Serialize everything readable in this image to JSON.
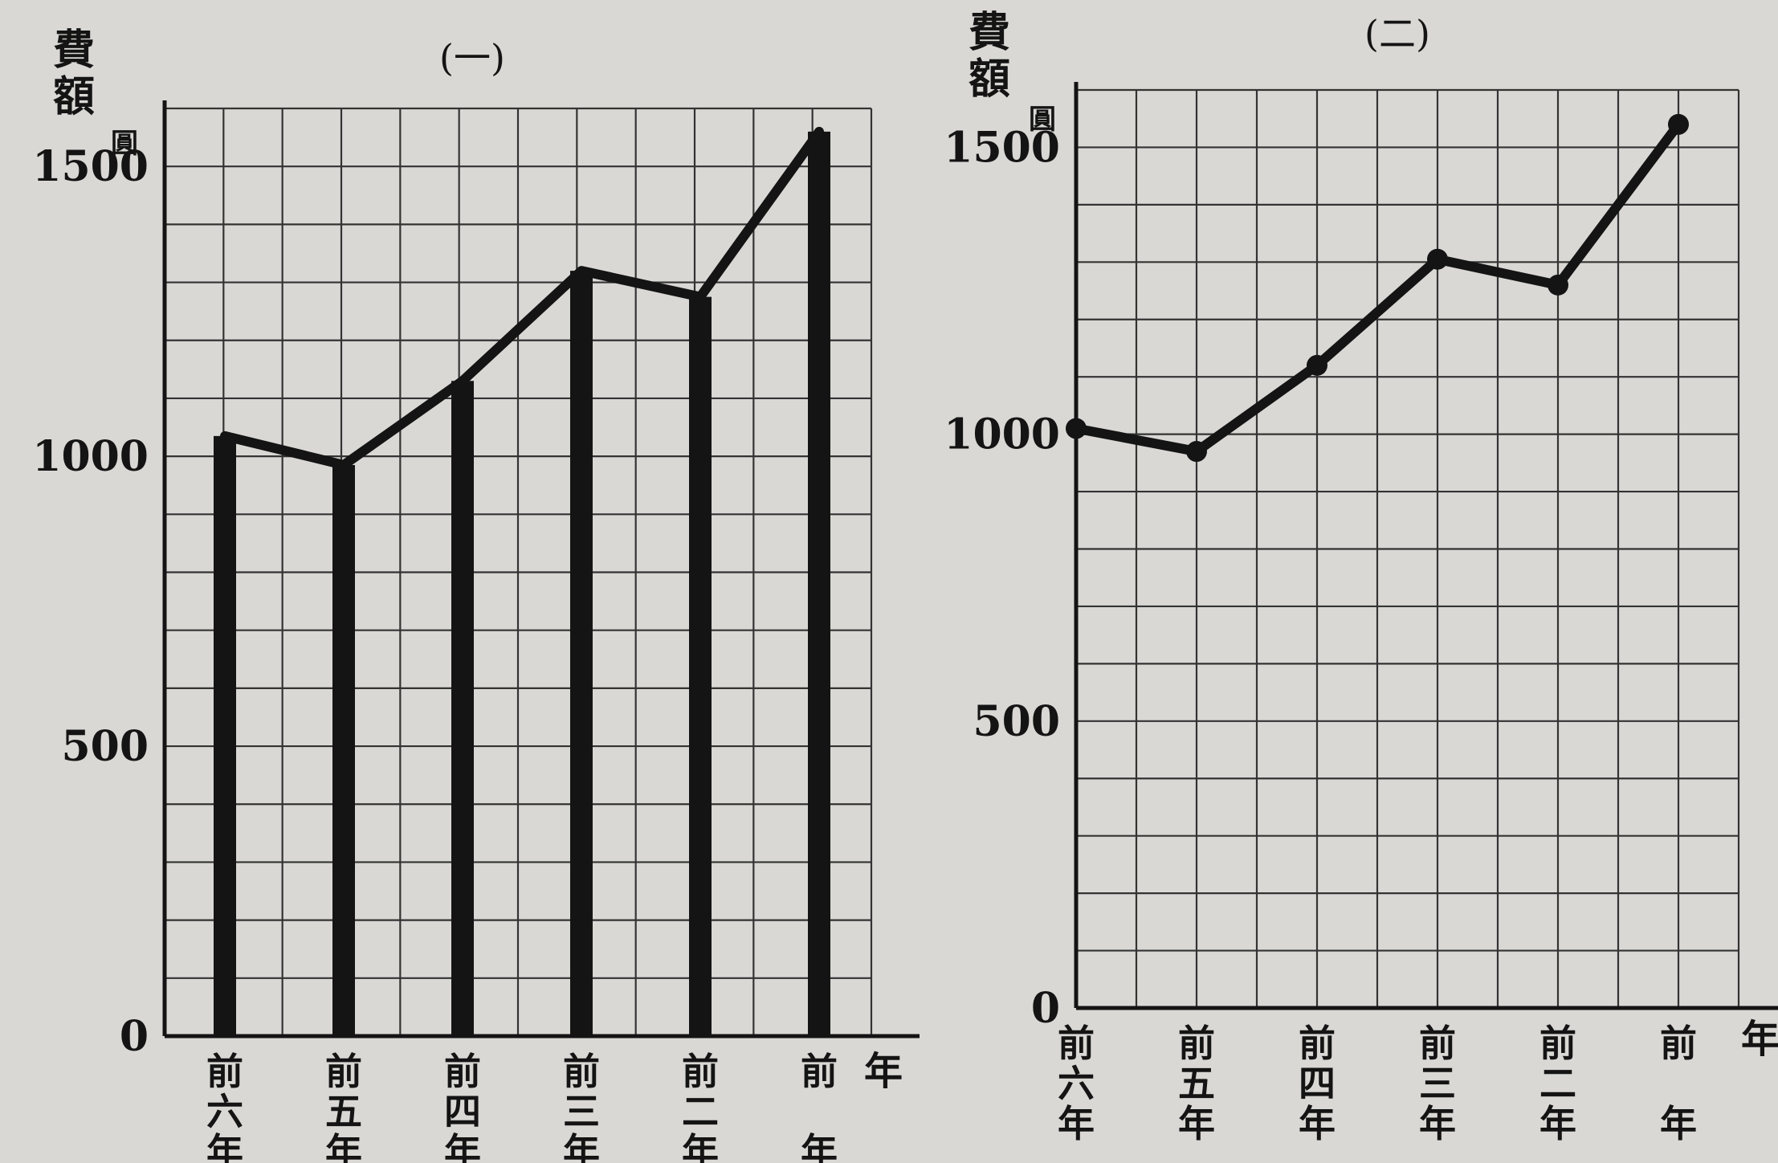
{
  "chart_data": [
    {
      "type": "bar",
      "title": "(一)",
      "ylabel": "費額",
      "yunit": "圓",
      "xlabel": "年",
      "categories": [
        "前六年",
        "前五年",
        "前四年",
        "前三年",
        "前二年",
        "前年"
      ],
      "values": [
        1035,
        985,
        1130,
        1320,
        1275,
        1560
      ],
      "line_overlay": true,
      "ylim": [
        0,
        1600
      ],
      "yticks": [
        0,
        500,
        1000,
        1500
      ],
      "grid": true
    },
    {
      "type": "line",
      "title": "(二)",
      "ylabel": "費額",
      "yunit": "圓",
      "xlabel": "年",
      "categories": [
        "前六年",
        "前五年",
        "前四年",
        "前三年",
        "前二年",
        "前年"
      ],
      "values": [
        1010,
        970,
        1120,
        1305,
        1260,
        1540
      ],
      "markers": true,
      "ylim": [
        0,
        1600
      ],
      "yticks": [
        0,
        500,
        1000,
        1500
      ],
      "grid": true
    }
  ]
}
